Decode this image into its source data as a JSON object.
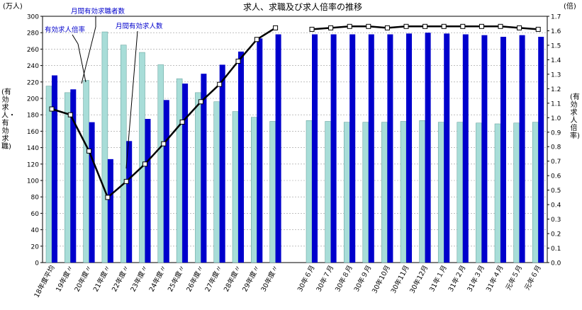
{
  "chart_data": {
    "type": "bar",
    "title": "求人、求職及び求人倍率の推移",
    "y_left_unit": "(万人)",
    "y_right_unit": "(倍)",
    "ylabel_left": "(有効求人・有効求職)",
    "ylabel_right": "(有効求人倍率)",
    "ylim_left": [
      0,
      300
    ],
    "ylim_right": [
      0,
      1.7
    ],
    "y_left_ticks": [
      "0",
      "20",
      "40",
      "60",
      "80",
      "100",
      "120",
      "140",
      "160",
      "180",
      "200",
      "220",
      "240",
      "260",
      "280",
      "300"
    ],
    "y_right_ticks": [
      "0.0",
      "0.1",
      "0.2",
      "0.3",
      "0.4",
      "0.5",
      "0.6",
      "0.7",
      "0.8",
      "0.9",
      "1.0",
      "1.1",
      "1.2",
      "1.3",
      "1.4",
      "1.5",
      "1.6",
      "1.7"
    ],
    "grid": "horizontal",
    "categories": [
      "18年度平均",
      "19年度〃",
      "20年度〃",
      "21年度〃",
      "22年度〃",
      "23年度〃",
      "24年度〃",
      "25年度〃",
      "26年度〃",
      "27年度〃",
      "28年度〃",
      "29年度〃",
      "30年度〃",
      "30年６月",
      "30年７月",
      "30年８月",
      "30年９月",
      "30年10月",
      "30年11月",
      "30年12月",
      "31年１月",
      "31年２月",
      "31年３月",
      "31年４月",
      "元年５月",
      "元年６月"
    ],
    "series": [
      {
        "name": "月間有効求職者数",
        "type": "bar",
        "color": "#a8ddd8",
        "values": [
          215,
          207,
          222,
          281,
          265,
          256,
          241,
          224,
          207,
          196,
          184,
          177,
          172,
          173,
          172,
          171,
          171,
          171,
          172,
          173,
          171,
          171,
          170,
          169,
          170,
          171
        ]
      },
      {
        "name": "月間有効求人数",
        "type": "bar",
        "color": "#0000cc",
        "values": [
          228,
          211,
          171,
          126,
          148,
          175,
          198,
          218,
          230,
          241,
          257,
          273,
          278,
          278,
          278,
          278,
          278,
          278,
          279,
          280,
          279,
          278,
          277,
          275,
          277,
          275
        ]
      },
      {
        "name": "有効求人倍率",
        "type": "line",
        "axis": "right",
        "color": "#000000",
        "values": [
          1.06,
          1.02,
          0.77,
          0.45,
          0.56,
          0.68,
          0.82,
          0.97,
          1.11,
          1.23,
          1.39,
          1.54,
          1.62,
          1.61,
          1.62,
          1.63,
          1.63,
          1.62,
          1.63,
          1.63,
          1.63,
          1.63,
          1.63,
          1.63,
          1.62,
          1.61
        ]
      }
    ],
    "annotations": [
      {
        "text": "有効求人倍率",
        "series": 2,
        "category": 2
      },
      {
        "text": "月間有効求職者数",
        "series": 0,
        "category": 2
      },
      {
        "text": "月間有効求人数",
        "series": 1,
        "category": 4
      }
    ]
  }
}
